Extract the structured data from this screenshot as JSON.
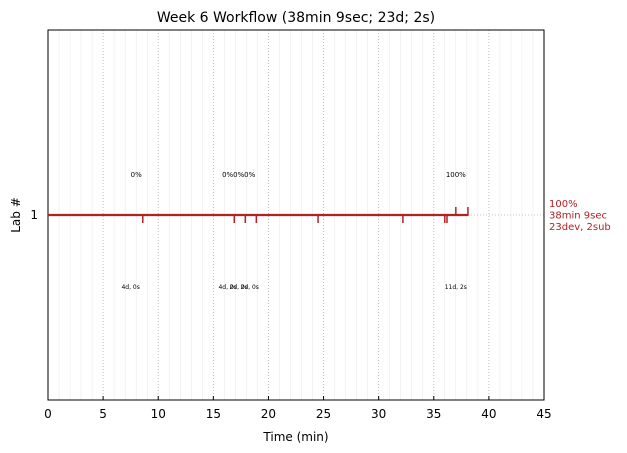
{
  "chart_data": {
    "type": "line",
    "title": "Week 6 Workflow (38min 9sec; 23d; 2s)",
    "xlabel": "Time (min)",
    "ylabel": "Lab #",
    "xlim": [
      0,
      45
    ],
    "ylim": [
      0.5,
      1.5
    ],
    "xticks": [
      "0",
      "5",
      "10",
      "15",
      "20",
      "25",
      "30",
      "35",
      "40",
      "45"
    ],
    "yticks": [
      "1"
    ],
    "grid": true,
    "series": [
      {
        "lab": 1,
        "color": "#b22222",
        "line": {
          "x_start": 0,
          "x_end": 38.15
        },
        "dev_events_min": [
          8.6,
          16.9,
          17.9,
          18.9,
          24.5,
          32.2,
          36.0,
          36.2
        ],
        "sub_events_min": [
          37.0,
          38.1
        ],
        "end_label": [
          "100%",
          "38min 9sec",
          "23dev, 2sub"
        ]
      }
    ],
    "annotations_top": [
      {
        "x": 8.0,
        "text": "0%"
      },
      {
        "x": 16.3,
        "text": "0%"
      },
      {
        "x": 17.3,
        "text": "0%"
      },
      {
        "x": 18.3,
        "text": "0%"
      },
      {
        "x": 37.0,
        "text": "100%"
      }
    ],
    "annotations_bottom": [
      {
        "x": 7.5,
        "text": "4d, 0s"
      },
      {
        "x": 16.3,
        "text": "4d, 0s"
      },
      {
        "x": 17.3,
        "text": "2d, 0s"
      },
      {
        "x": 18.3,
        "text": "2d, 0s"
      },
      {
        "x": 37.0,
        "text": "11d, 2s"
      }
    ]
  }
}
